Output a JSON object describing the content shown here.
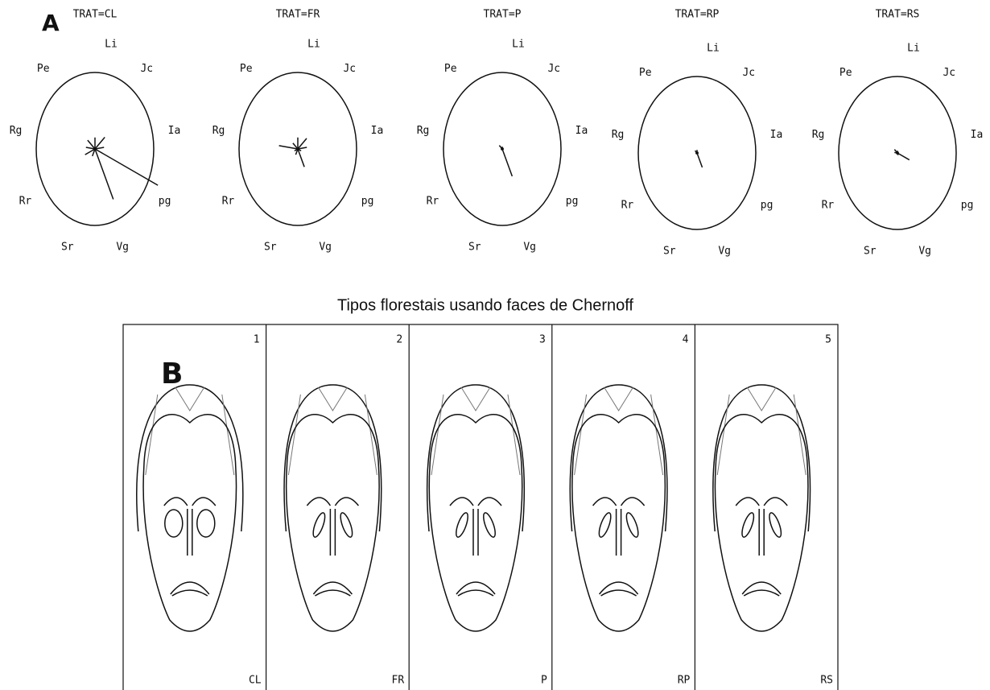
{
  "panel_labels": [
    "A",
    "B"
  ],
  "chart_data": [
    {
      "type": "radar",
      "title": "TRAT=CL",
      "categories": [
        "Li",
        "Jc",
        "Ia",
        "pg",
        "Vg",
        "Sr",
        "Rr",
        "Rg",
        "Pe"
      ],
      "values": [
        15,
        20,
        12,
        95,
        70,
        10,
        15,
        12,
        15
      ],
      "ylim": [
        0,
        100
      ]
    },
    {
      "type": "radar",
      "title": "TRAT=FR",
      "categories": [
        "Li",
        "Jc",
        "Ia",
        "pg",
        "Vg",
        "Sr",
        "Rr",
        "Rg",
        "Pe"
      ],
      "values": [
        15,
        18,
        12,
        5,
        25,
        8,
        5,
        25,
        10
      ],
      "ylim": [
        0,
        100
      ]
    },
    {
      "type": "radar",
      "title": "TRAT=P",
      "categories": [
        "Li",
        "Jc",
        "Ia",
        "pg",
        "Vg",
        "Sr",
        "Rr",
        "Rg",
        "Pe"
      ],
      "values": [
        3,
        2,
        2,
        2,
        38,
        2,
        2,
        2,
        6
      ],
      "ylim": [
        0,
        100
      ]
    },
    {
      "type": "radar",
      "title": "TRAT=RP",
      "categories": [
        "Li",
        "Jc",
        "Ia",
        "pg",
        "Vg",
        "Sr",
        "Rr",
        "Rg",
        "Pe"
      ],
      "values": [
        4,
        2,
        2,
        2,
        20,
        2,
        2,
        2,
        4
      ],
      "ylim": [
        0,
        100
      ]
    },
    {
      "type": "radar",
      "title": "TRAT=RS",
      "categories": [
        "Li",
        "Jc",
        "Ia",
        "pg",
        "Vg",
        "Sr",
        "Rr",
        "Rg",
        "Pe"
      ],
      "values": [
        3,
        2,
        2,
        18,
        3,
        2,
        2,
        4,
        6
      ],
      "ylim": [
        0,
        100
      ]
    }
  ],
  "faces": {
    "title": "Tipos florestais usando faces de Chernoff",
    "panels": [
      {
        "number": "1",
        "label": "CL"
      },
      {
        "number": "2",
        "label": "FR"
      },
      {
        "number": "3",
        "label": "P"
      },
      {
        "number": "4",
        "label": "RP"
      },
      {
        "number": "5",
        "label": "RS"
      }
    ]
  }
}
